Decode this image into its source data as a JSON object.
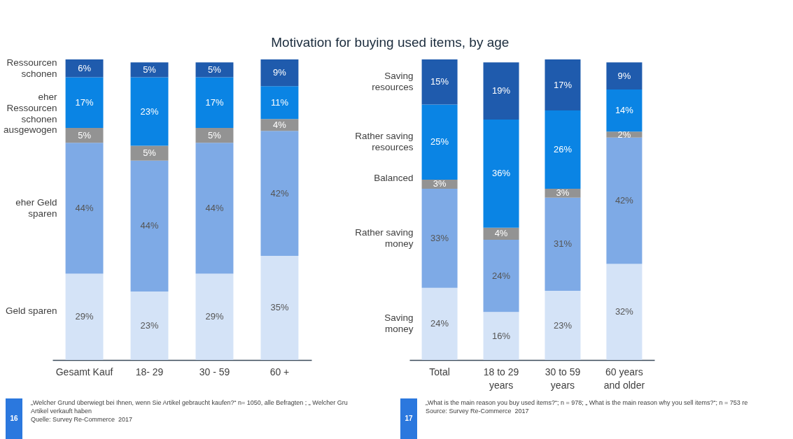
{
  "chart_data": [
    {
      "type": "bar",
      "stacked": true,
      "categories": [
        "Gesamt Kauf",
        "18- 29",
        "30 - 59",
        "60 +"
      ],
      "series": [
        {
          "name": "Geld sparen",
          "color": "#d4e3f7",
          "values": [
            29,
            23,
            29,
            35
          ],
          "value_labels": [
            "29%",
            "23%",
            "29%",
            "35%"
          ]
        },
        {
          "name": "eher Geld\nsparen",
          "color": "#7eaae6",
          "values": [
            44,
            44,
            44,
            42
          ],
          "value_labels": [
            "44%",
            "44%",
            "44%",
            "42%"
          ]
        },
        {
          "name": "ausgewogen",
          "color": "#939393",
          "values": [
            5,
            5,
            5,
            4
          ],
          "value_labels": [
            "5%",
            "5%",
            "5%",
            "4%"
          ]
        },
        {
          "name": "eher\nRessourcen\nschonen",
          "color": "#0a84e4",
          "values": [
            17,
            23,
            17,
            11
          ],
          "value_labels": [
            "17%",
            "23%",
            "17%",
            "11%"
          ]
        },
        {
          "name": "Ressourcen\nschonen",
          "color": "#1f5bad",
          "values": [
            6,
            5,
            5,
            9
          ],
          "value_labels": [
            "6%",
            "5%",
            "5%",
            "9%"
          ]
        }
      ],
      "annotations": [
        "16",
        "„Welcher Grund überwiegt bei Ihnen, wenn Sie Artikel gebraucht kaufen?“ n= 1050, alle Befragten ; „ Welcher Gru\nArtikel verkauft haben",
        "Quelle: Survey Re-Commerce  2017"
      ]
    },
    {
      "type": "bar",
      "stacked": true,
      "title": "Motivation for buying used items, by age",
      "categories": [
        "Total",
        "18 to 29\nyears",
        "30 to 59\nyears",
        "60 years\nand older"
      ],
      "series": [
        {
          "name": "Saving\nmoney",
          "color": "#d4e3f7",
          "values": [
            24,
            16,
            23,
            32
          ],
          "value_labels": [
            "24%",
            "16%",
            "23%",
            "32%"
          ]
        },
        {
          "name": "Rather saving\nmoney",
          "color": "#7eaae6",
          "values": [
            33,
            24,
            31,
            42
          ],
          "value_labels": [
            "33%",
            "24%",
            "31%",
            "42%"
          ]
        },
        {
          "name": "Balanced",
          "color": "#939393",
          "values": [
            3,
            4,
            3,
            2
          ],
          "value_labels": [
            "3%",
            "4%",
            "3%",
            "2%"
          ]
        },
        {
          "name": "Rather saving\nresources",
          "color": "#0a84e4",
          "values": [
            25,
            36,
            26,
            14
          ],
          "value_labels": [
            "25%",
            "36%",
            "26%",
            "14%"
          ]
        },
        {
          "name": "Saving\nresources",
          "color": "#1f5bad",
          "values": [
            15,
            19,
            17,
            9
          ],
          "value_labels": [
            "15%",
            "19%",
            "17%",
            "9%"
          ]
        }
      ],
      "annotations": [
        "17",
        "„What is the main reason you buy used items?“; n = 978; „ What is the main reason why you sell items?“; n = 753 re",
        "Source: Survey Re-Commerce  2017"
      ]
    }
  ]
}
